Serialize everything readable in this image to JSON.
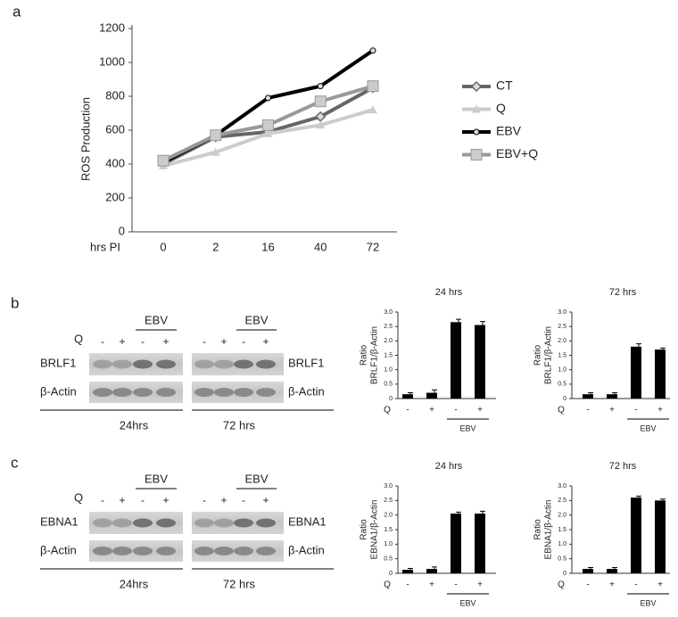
{
  "panel_labels": [
    "a",
    "b",
    "c"
  ],
  "chart_data": [
    {
      "type": "line",
      "ylabel": "ROS Production",
      "xlabel": "hrs PI",
      "categories": [
        "0",
        "2",
        "16",
        "40",
        "72"
      ],
      "ylim": [
        0,
        1200
      ],
      "yticks": [
        0,
        200,
        400,
        600,
        800,
        1000,
        1200
      ],
      "series": [
        {
          "name": "CT",
          "color": "#666666",
          "marker": "diamond",
          "values": [
            400,
            560,
            590,
            680,
            850
          ]
        },
        {
          "name": "Q",
          "color": "#cccccc",
          "marker": "triangle",
          "values": [
            390,
            470,
            580,
            630,
            720
          ]
        },
        {
          "name": "EBV",
          "color": "#000000",
          "marker": "circle",
          "values": [
            410,
            570,
            790,
            860,
            1070
          ]
        },
        {
          "name": "EBV+Q",
          "color": "#999999",
          "marker": "square",
          "values": [
            420,
            570,
            630,
            770,
            860
          ]
        }
      ]
    },
    {
      "type": "bar",
      "title": "24 hrs",
      "ylabel": [
        "Ratio",
        "BRLF1/β-Actin"
      ],
      "row_label": "Q",
      "group_label": "EBV",
      "categories": [
        "-",
        "+",
        "-",
        "+"
      ],
      "values": [
        0.15,
        0.2,
        2.65,
        2.55
      ],
      "errors": [
        0.05,
        0.1,
        0.1,
        0.12
      ],
      "color": "#000000",
      "ylim": [
        0,
        3
      ],
      "yticks": [
        0,
        0.5,
        {
          "value": 1,
          "label": "1.0"
        },
        1.5,
        {
          "value": 2,
          "label": "2.0"
        },
        2.5,
        {
          "value": 3,
          "label": "3.0"
        }
      ]
    },
    {
      "type": "bar",
      "title": "72 hrs",
      "ylabel": [
        "Ratio",
        "BRLF1/β-Actin"
      ],
      "row_label": "Q",
      "group_label": "EBV",
      "categories": [
        "-",
        "+",
        "-",
        "+"
      ],
      "values": [
        0.15,
        0.15,
        1.8,
        1.7
      ],
      "errors": [
        0.05,
        0.05,
        0.1,
        0.05
      ],
      "color": "#000000",
      "ylim": [
        0,
        3
      ],
      "yticks": [
        0,
        0.5,
        {
          "value": 1,
          "label": "1.0"
        },
        1.5,
        {
          "value": 2,
          "label": "2.0"
        },
        2.5,
        {
          "value": 3,
          "label": "3.0"
        }
      ]
    },
    {
      "type": "bar",
      "title": "24 hrs",
      "ylabel": [
        "Ratio",
        "EBNA1/β-Actin"
      ],
      "row_label": "Q",
      "group_label": "EBV",
      "categories": [
        "-",
        "+",
        "-",
        "+"
      ],
      "values": [
        0.12,
        0.15,
        2.05,
        2.05
      ],
      "errors": [
        0.05,
        0.07,
        0.05,
        0.08
      ],
      "color": "#000000",
      "ylim": [
        0,
        3
      ],
      "yticks": [
        0,
        0.5,
        {
          "value": 1,
          "label": "1.0"
        },
        1.5,
        {
          "value": 2,
          "label": "2.0"
        },
        2.5,
        {
          "value": 3,
          "label": "3.0"
        }
      ]
    },
    {
      "type": "bar",
      "title": "72 hrs",
      "ylabel": [
        "Ratio",
        "EBNA1/β-Actin"
      ],
      "row_label": "Q",
      "group_label": "EBV",
      "categories": [
        "-",
        "+",
        "-",
        "+"
      ],
      "values": [
        0.15,
        0.15,
        2.6,
        2.5
      ],
      "errors": [
        0.05,
        0.05,
        0.05,
        0.05
      ],
      "color": "#000000",
      "ylim": [
        0,
        3
      ],
      "yticks": [
        0,
        0.5,
        {
          "value": 1,
          "label": "1.0"
        },
        1.5,
        {
          "value": 2,
          "label": "2.0"
        },
        2.5,
        {
          "value": 3,
          "label": "3.0"
        }
      ]
    }
  ],
  "blots": [
    {
      "q_label": "Q",
      "left_labels": [
        "BRLF1",
        "β-Actin"
      ],
      "right_labels": [
        "BRLF1",
        "β-Actin"
      ],
      "groups": [
        {
          "ebv": "EBV",
          "signs": [
            "-",
            "+",
            "-",
            "+"
          ],
          "time": "24hrs"
        },
        {
          "ebv": "EBV",
          "signs": [
            "-",
            "+",
            "-",
            "+"
          ],
          "time": "72 hrs"
        }
      ]
    },
    {
      "q_label": "Q",
      "left_labels": [
        "EBNA1",
        "β-Actin"
      ],
      "right_labels": [
        "EBNA1",
        "β-Actin"
      ],
      "groups": [
        {
          "ebv": "EBV",
          "signs": [
            "-",
            "+",
            "-",
            "+"
          ],
          "time": "24hrs"
        },
        {
          "ebv": "EBV",
          "signs": [
            "-",
            "+",
            "-",
            "+"
          ],
          "time": "72 hrs"
        }
      ]
    }
  ]
}
